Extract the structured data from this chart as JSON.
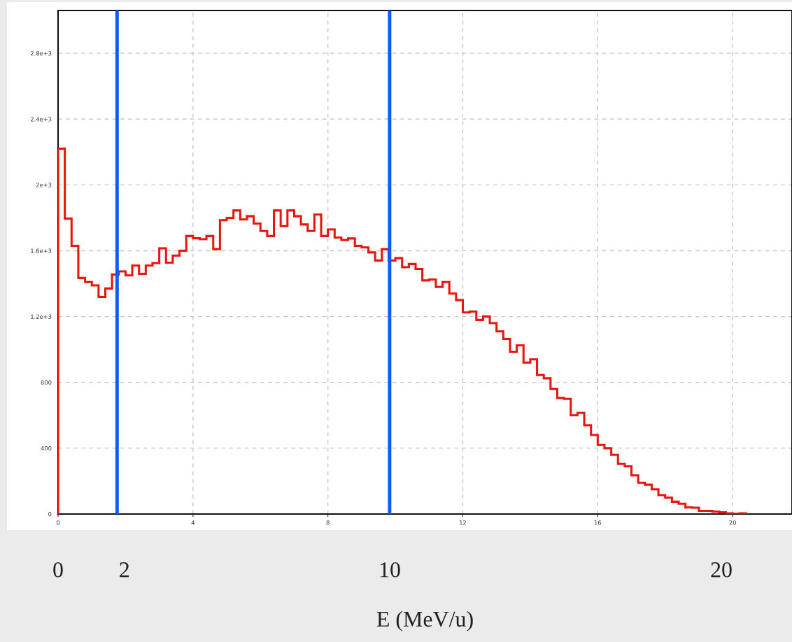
{
  "chart_data": {
    "type": "histogram",
    "xlabel": "E (MeV/u)",
    "bins": [
      0,
      0.2,
      0.4,
      0.6,
      0.8,
      1,
      1.2,
      1.4,
      1.6,
      1.8,
      2,
      2.2,
      2.4,
      2.6,
      2.8,
      3,
      3.2,
      3.4,
      3.6,
      3.8,
      4,
      4.2,
      4.4,
      4.6,
      4.8,
      5,
      5.2,
      5.4,
      5.6,
      5.8,
      6,
      6.2,
      6.4,
      6.6,
      6.8,
      7,
      7.2,
      7.4,
      7.6,
      7.8,
      8,
      8.2,
      8.4,
      8.6,
      8.8,
      9,
      9.2,
      9.4,
      9.6,
      9.8,
      10,
      10.2,
      10.4,
      10.6,
      10.8,
      11,
      11.2,
      11.4,
      11.6,
      11.8,
      12,
      12.2,
      12.4,
      12.6,
      12.8,
      13,
      13.2,
      13.4,
      13.6,
      13.8,
      14,
      14.2,
      14.4,
      14.6,
      14.8,
      15,
      15.2,
      15.4,
      15.6,
      15.8,
      16,
      16.2,
      16.4,
      16.6,
      16.8,
      17,
      17.2,
      17.4,
      17.6,
      17.8,
      18,
      18.2,
      18.4,
      18.6,
      18.8,
      19,
      19.2,
      19.4,
      19.6,
      19.8,
      20,
      20.2,
      20.4
    ],
    "values": [
      2220,
      1795,
      1630,
      1435,
      1410,
      1390,
      1320,
      1370,
      1455,
      1475,
      1450,
      1510,
      1460,
      1510,
      1525,
      1615,
      1527,
      1570,
      1600,
      1690,
      1676,
      1670,
      1690,
      1610,
      1786,
      1800,
      1845,
      1790,
      1810,
      1765,
      1720,
      1690,
      1845,
      1750,
      1845,
      1810,
      1760,
      1720,
      1820,
      1690,
      1730,
      1680,
      1665,
      1675,
      1630,
      1620,
      1590,
      1540,
      1610,
      1540,
      1555,
      1500,
      1520,
      1490,
      1420,
      1425,
      1380,
      1410,
      1340,
      1300,
      1225,
      1230,
      1180,
      1200,
      1160,
      1110,
      1065,
      985,
      1025,
      920,
      940,
      845,
      825,
      760,
      705,
      700,
      600,
      615,
      540,
      480,
      420,
      400,
      360,
      305,
      290,
      235,
      190,
      178,
      150,
      115,
      100,
      75,
      63,
      40,
      38,
      19,
      19,
      15,
      10,
      4,
      2,
      4
    ],
    "color": "#e8160c",
    "xlim": [
      0,
      21.76
    ],
    "xticks": [
      0,
      4,
      8,
      12,
      16,
      20
    ],
    "ylim": [
      0,
      3060
    ],
    "yticks": [
      0,
      400,
      800,
      {
        "value": 1200,
        "label": "1.2e+3"
      },
      {
        "value": 1600,
        "label": "1.6e+3"
      },
      {
        "value": 2000,
        "label": "2e+3"
      },
      {
        "value": 2400,
        "label": "2.4e+3"
      },
      {
        "value": 2800,
        "label": "2.8e+3"
      }
    ],
    "x2lim": [
      0,
      22.13
    ],
    "x2ticks": [
      0,
      2,
      10,
      20
    ],
    "ref_lines": [
      {
        "axis": "x",
        "value": 1.75,
        "color": "#0a5cff"
      },
      {
        "axis": "x",
        "value": 9.83,
        "color": "#0a5cff"
      }
    ],
    "grid": true
  }
}
